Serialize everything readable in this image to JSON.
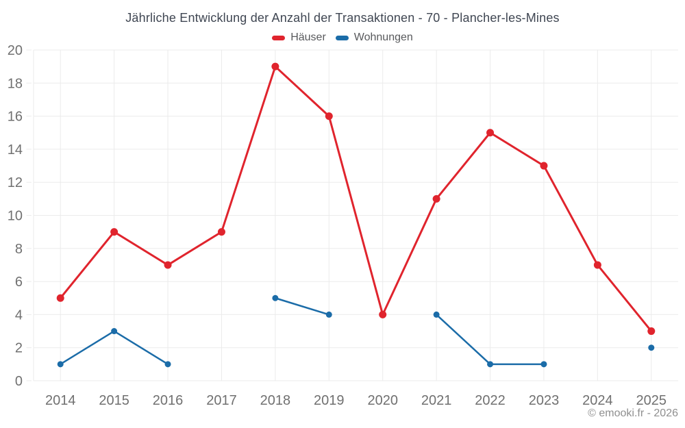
{
  "chart_data": {
    "type": "line",
    "title": "Jährliche Entwicklung der Anzahl der Transaktionen - 70 - Plancher-les-Mines",
    "categories": [
      "2014",
      "2015",
      "2016",
      "2017",
      "2018",
      "2019",
      "2020",
      "2021",
      "2022",
      "2023",
      "2024",
      "2025"
    ],
    "series": [
      {
        "name": "Häuser",
        "color": "#e0242d",
        "values": [
          5,
          9,
          7,
          9,
          19,
          16,
          4,
          11,
          15,
          13,
          7,
          3
        ]
      },
      {
        "name": "Wohnungen",
        "color": "#1b6ca8",
        "values": [
          1,
          3,
          1,
          null,
          5,
          4,
          null,
          4,
          1,
          1,
          null,
          2
        ]
      }
    ],
    "ylim": [
      0,
      20
    ],
    "ytick_step": 2,
    "grid": true,
    "legend_position": "top",
    "colors": {
      "gridline": "#ebebeb",
      "tick_label": "#707070",
      "title": "#3f4652"
    }
  },
  "footer": {
    "copyright": "© emooki.fr - 2026"
  }
}
